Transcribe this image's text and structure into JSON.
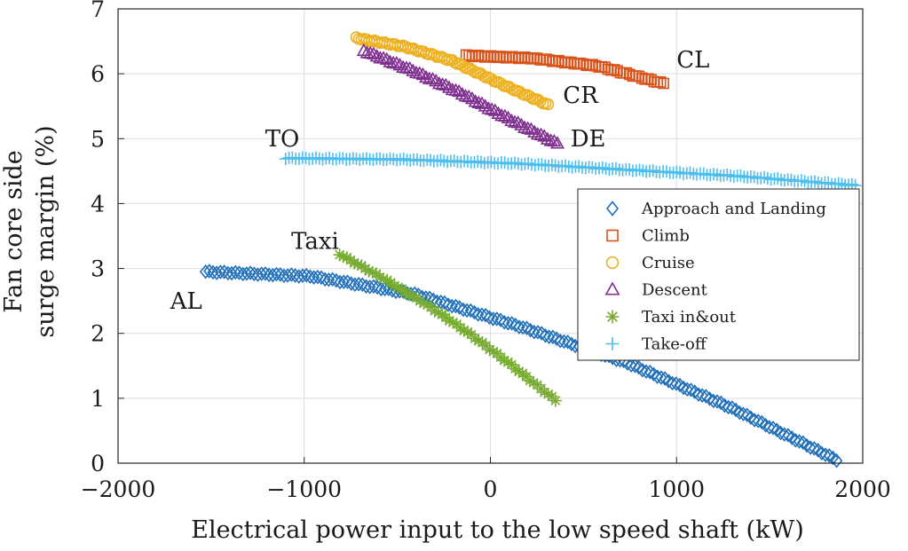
{
  "chart_data": {
    "type": "scatter",
    "title": "",
    "xlabel": "Electrical power input to the low speed shaft (kW)",
    "ylabel_lines": [
      "Fan core side",
      "surge margin (%)"
    ],
    "xlim": [
      -2000,
      2000
    ],
    "ylim": [
      0,
      7
    ],
    "xticks": [
      -2000,
      -1000,
      0,
      1000,
      2000
    ],
    "xtick_labels": [
      "−2000",
      "−1000",
      "0",
      "1000",
      "2000"
    ],
    "yticks": [
      0,
      1,
      2,
      3,
      4,
      5,
      6,
      7
    ],
    "ytick_labels": [
      "0",
      "1",
      "2",
      "3",
      "4",
      "5",
      "6",
      "7"
    ],
    "grid": true,
    "legend_position": "right",
    "series": [
      {
        "name": "Approach and Landing",
        "color": "#1f6fba",
        "marker": "diamond",
        "x_range": [
          -1530,
          1860
        ],
        "y_samples": [
          2.95,
          2.88,
          2.6,
          2.1,
          1.55,
          0.85,
          0.05
        ],
        "count": 170
      },
      {
        "name": "Climb",
        "color": "#d95319",
        "marker": "square",
        "x_range": [
          -130,
          930
        ],
        "y_samples": [
          6.28,
          6.24,
          6.12,
          5.85
        ],
        "count": 65
      },
      {
        "name": "Cruise",
        "color": "#edb120",
        "marker": "circle",
        "x_range": [
          -720,
          310
        ],
        "y_samples": [
          6.55,
          6.42,
          6.2,
          5.85,
          5.52
        ],
        "count": 75
      },
      {
        "name": "Descent",
        "color": "#7e2f8e",
        "marker": "triangle",
        "x_range": [
          -680,
          360
        ],
        "y_samples": [
          6.35,
          6.05,
          5.7,
          5.3,
          4.92
        ],
        "count": 60
      },
      {
        "name": "Taxi in&out",
        "color": "#77ac30",
        "marker": "asterisk",
        "x_range": [
          -810,
          350
        ],
        "y_samples": [
          3.22,
          2.85,
          2.45,
          2.0,
          1.5,
          0.97
        ],
        "count": 60
      },
      {
        "name": "Take-off",
        "color": "#4dbeee",
        "marker": "plus",
        "x_range": [
          -1100,
          1960
        ],
        "y_samples": [
          4.7,
          4.68,
          4.62,
          4.52,
          4.42,
          4.28
        ],
        "count": 170
      }
    ],
    "annotations": [
      {
        "text": "CL",
        "x": 1000,
        "y": 6.1
      },
      {
        "text": "CR",
        "x": 390,
        "y": 5.55
      },
      {
        "text": "DE",
        "x": 430,
        "y": 4.88
      },
      {
        "text": "TO",
        "x": -1210,
        "y": 4.88
      },
      {
        "text": "Taxi",
        "x": -1070,
        "y": 3.3
      },
      {
        "text": "AL",
        "x": -1720,
        "y": 2.38
      }
    ]
  }
}
